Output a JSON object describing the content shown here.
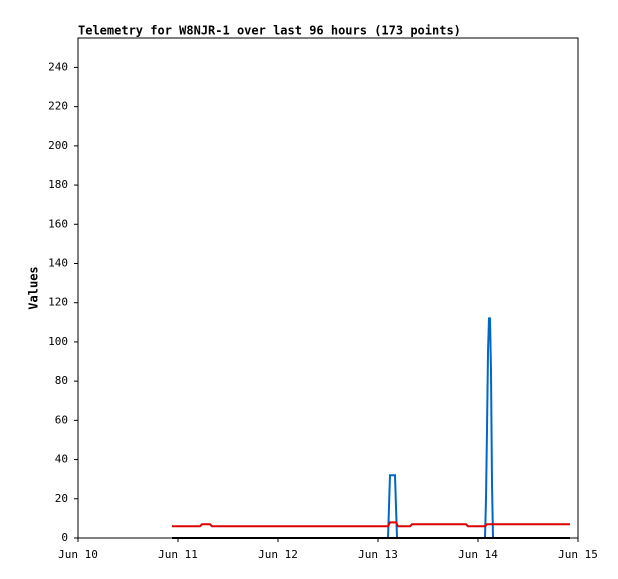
{
  "chart_data": {
    "type": "line",
    "title": "Telemetry for W8NJR-1 over last 96 hours (173 points)",
    "y_label": "Values",
    "xlim": [
      0,
      5
    ],
    "ylim": [
      0,
      255
    ],
    "xticks": [
      {
        "value": 0,
        "label": "Jun 10"
      },
      {
        "value": 1,
        "label": "Jun 11"
      },
      {
        "value": 2,
        "label": "Jun 12"
      },
      {
        "value": 3,
        "label": "Jun 13"
      },
      {
        "value": 4,
        "label": "Jun 14"
      },
      {
        "value": 5,
        "label": "Jun 15"
      }
    ],
    "yticks": [
      0,
      20,
      40,
      60,
      80,
      100,
      120,
      140,
      160,
      180,
      200,
      220,
      240
    ],
    "series": [
      {
        "color": "#000000",
        "x": [
          0.94,
          4.92
        ],
        "values": [
          0,
          0
        ]
      },
      {
        "color": "#dd0000",
        "x": [
          0.94,
          1.22,
          1.24,
          1.32,
          1.34,
          3.1,
          3.12,
          3.18,
          3.2,
          3.32,
          3.34,
          3.88,
          3.9,
          4.07,
          4.09,
          4.92
        ],
        "values": [
          6,
          6,
          7,
          7,
          6,
          6,
          8,
          8,
          6,
          6,
          7,
          7,
          6,
          6,
          7,
          7
        ]
      },
      {
        "color": "#0066cc",
        "x": [
          0.94,
          3.1,
          3.12,
          3.17,
          3.19,
          4.07,
          4.08,
          4.09,
          4.1,
          4.11,
          4.12,
          4.13,
          4.14,
          4.15,
          4.92
        ],
        "values": [
          0,
          0,
          32,
          32,
          0,
          0,
          20,
          55,
          95,
          112,
          112,
          85,
          28,
          0,
          0
        ]
      }
    ]
  }
}
